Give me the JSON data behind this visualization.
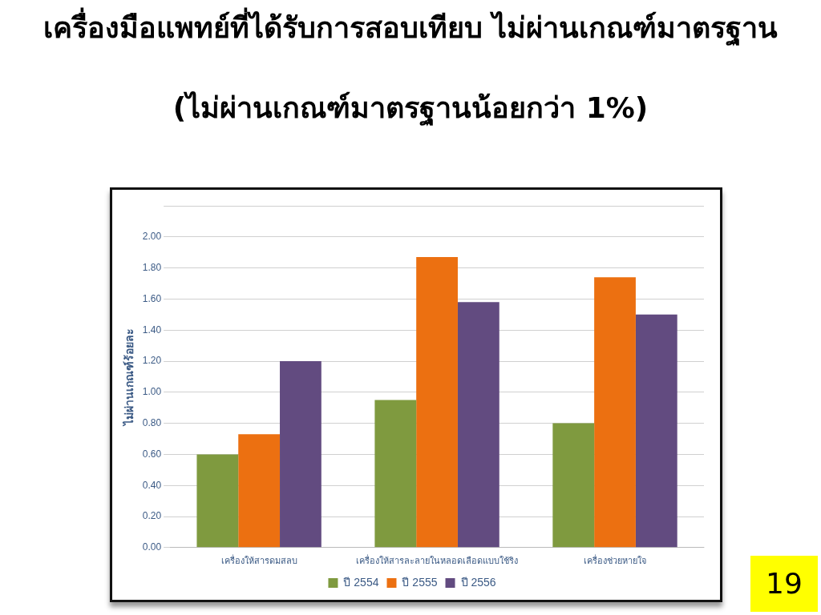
{
  "chart_data": {
    "type": "bar",
    "title": "เครื่องมือแพทย์ที่ได้รับการสอบเทียบ ไม่ผ่านเกณฑ์มาตรฐาน",
    "subtitle": "(ไม่ผ่านเกณฑ์มาตรฐานน้อยกว่า 1%)",
    "ylabel": "ไม่ผ่านเกณฑ์ร้อยละ",
    "categories": [
      "เครื่องให้สารดมสลบ",
      "เครื่องให้สารละลายในหลอดเลือดแบบใช้ริง",
      "เครื่องช่วยหายใจ"
    ],
    "series": [
      {
        "name": "ปี 2554",
        "color": "#7f9a3f",
        "values": [
          0.6,
          0.95,
          0.8
        ]
      },
      {
        "name": "ปี 2555",
        "color": "#ec7011",
        "values": [
          0.73,
          1.87,
          1.74
        ]
      },
      {
        "name": "ปี 2556",
        "color": "#624b80",
        "values": [
          1.2,
          1.58,
          1.5
        ]
      }
    ],
    "ylim": [
      0,
      2.2
    ],
    "yticks": [
      {
        "value": 0,
        "label": "0.00"
      },
      {
        "value": 0.2,
        "label": "0.20"
      },
      {
        "value": 0.4,
        "label": "0.40"
      },
      {
        "value": 0.6,
        "label": "0.60"
      },
      {
        "value": 0.8,
        "label": "0.80"
      },
      {
        "value": 1,
        "label": "1.00"
      },
      {
        "value": 1.2,
        "label": "1.20"
      },
      {
        "value": 1.4,
        "label": "1.40"
      },
      {
        "value": 1.6,
        "label": "1.60"
      },
      {
        "value": 1.8,
        "label": "1.80"
      },
      {
        "value": 2,
        "label": "2.00"
      },
      {
        "value": 2.2,
        "label": null
      }
    ],
    "grid": "y",
    "legend": "bottom",
    "annotations": [
      "19"
    ]
  }
}
